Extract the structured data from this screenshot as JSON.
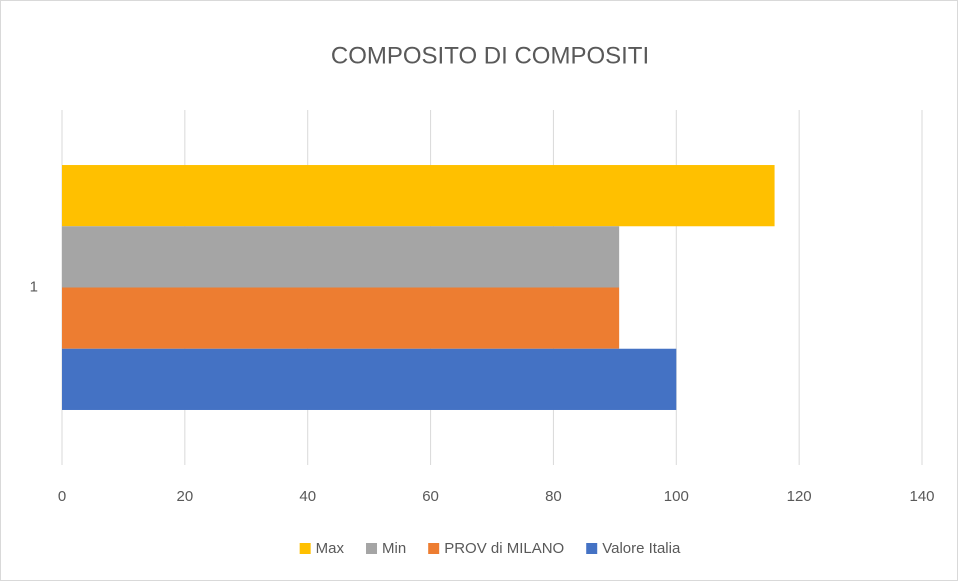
{
  "chart_data": {
    "type": "barh",
    "title": "COMPOSITO DI COMPOSITI",
    "categories": [
      "1"
    ],
    "series": [
      {
        "name": "Max",
        "color": "#ffc000",
        "values": [
          116
        ]
      },
      {
        "name": "Min",
        "color": "#a5a5a5",
        "values": [
          90.7
        ]
      },
      {
        "name": "PROV di MILANO",
        "color": "#ed7d31",
        "values": [
          90.7
        ]
      },
      {
        "name": "Valore Italia",
        "color": "#4472c4",
        "values": [
          100
        ]
      }
    ],
    "xlim": [
      0,
      140
    ],
    "xticks": [
      0,
      20,
      40,
      60,
      80,
      100,
      120,
      140
    ],
    "grid": true,
    "legend": "bottom"
  }
}
